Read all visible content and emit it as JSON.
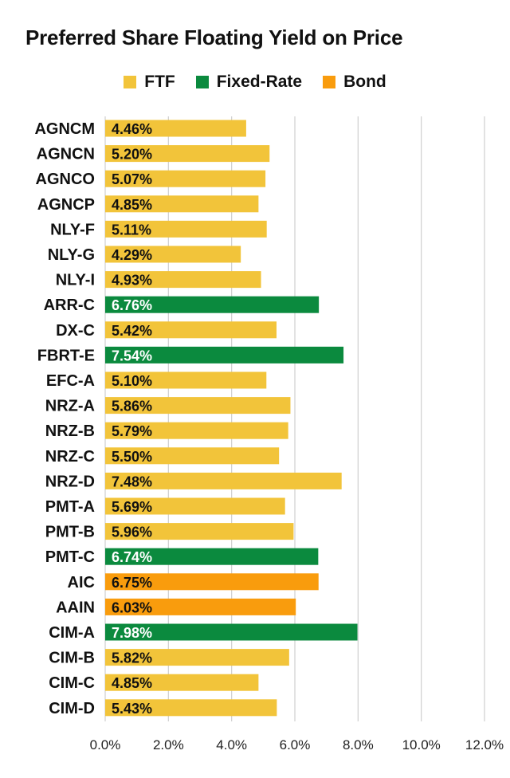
{
  "colors": {
    "FTF": "#f2c43a",
    "Fixed-Rate": "#0b8a3e",
    "Bond": "#f99c0d",
    "grid": "#cfcfcf"
  },
  "legend": [
    {
      "name": "FTF",
      "color": "#f2c43a"
    },
    {
      "name": "Fixed-Rate",
      "color": "#0b8a3e"
    },
    {
      "name": "Bond",
      "color": "#f99c0d"
    }
  ],
  "chart_data": {
    "type": "bar",
    "orientation": "horizontal",
    "title": "Preferred Share Floating Yield on Price",
    "xlabel": "",
    "ylabel": "",
    "xlim": [
      0,
      12
    ],
    "xticks": [
      "0.0%",
      "2.0%",
      "4.0%",
      "6.0%",
      "8.0%",
      "10.0%",
      "12.0%"
    ],
    "grid": "vertical",
    "legend_position": "top-center",
    "categories": [
      "AGNCM",
      "AGNCN",
      "AGNCO",
      "AGNCP",
      "NLY-F",
      "NLY-G",
      "NLY-I",
      "ARR-C",
      "DX-C",
      "FBRT-E",
      "EFC-A",
      "NRZ-A",
      "NRZ-B",
      "NRZ-C",
      "NRZ-D",
      "PMT-A",
      "PMT-B",
      "PMT-C",
      "AIC",
      "AAIN",
      "CIM-A",
      "CIM-B",
      "CIM-C",
      "CIM-D"
    ],
    "values": [
      4.46,
      5.2,
      5.07,
      4.85,
      5.11,
      4.29,
      4.93,
      6.76,
      5.42,
      7.54,
      5.1,
      5.86,
      5.79,
      5.5,
      7.48,
      5.69,
      5.96,
      6.74,
      6.75,
      6.03,
      7.98,
      5.82,
      4.85,
      5.43
    ],
    "labels": [
      "4.46%",
      "5.20%",
      "5.07%",
      "4.85%",
      "5.11%",
      "4.29%",
      "4.93%",
      "6.76%",
      "5.42%",
      "7.54%",
      "5.10%",
      "5.86%",
      "5.79%",
      "5.50%",
      "7.48%",
      "5.69%",
      "5.96%",
      "6.74%",
      "6.75%",
      "6.03%",
      "7.98%",
      "5.82%",
      "4.85%",
      "5.43%"
    ],
    "types": [
      "FTF",
      "FTF",
      "FTF",
      "FTF",
      "FTF",
      "FTF",
      "FTF",
      "Fixed-Rate",
      "FTF",
      "Fixed-Rate",
      "FTF",
      "FTF",
      "FTF",
      "FTF",
      "FTF",
      "FTF",
      "FTF",
      "Fixed-Rate",
      "Bond",
      "Bond",
      "Fixed-Rate",
      "FTF",
      "FTF",
      "FTF"
    ]
  }
}
